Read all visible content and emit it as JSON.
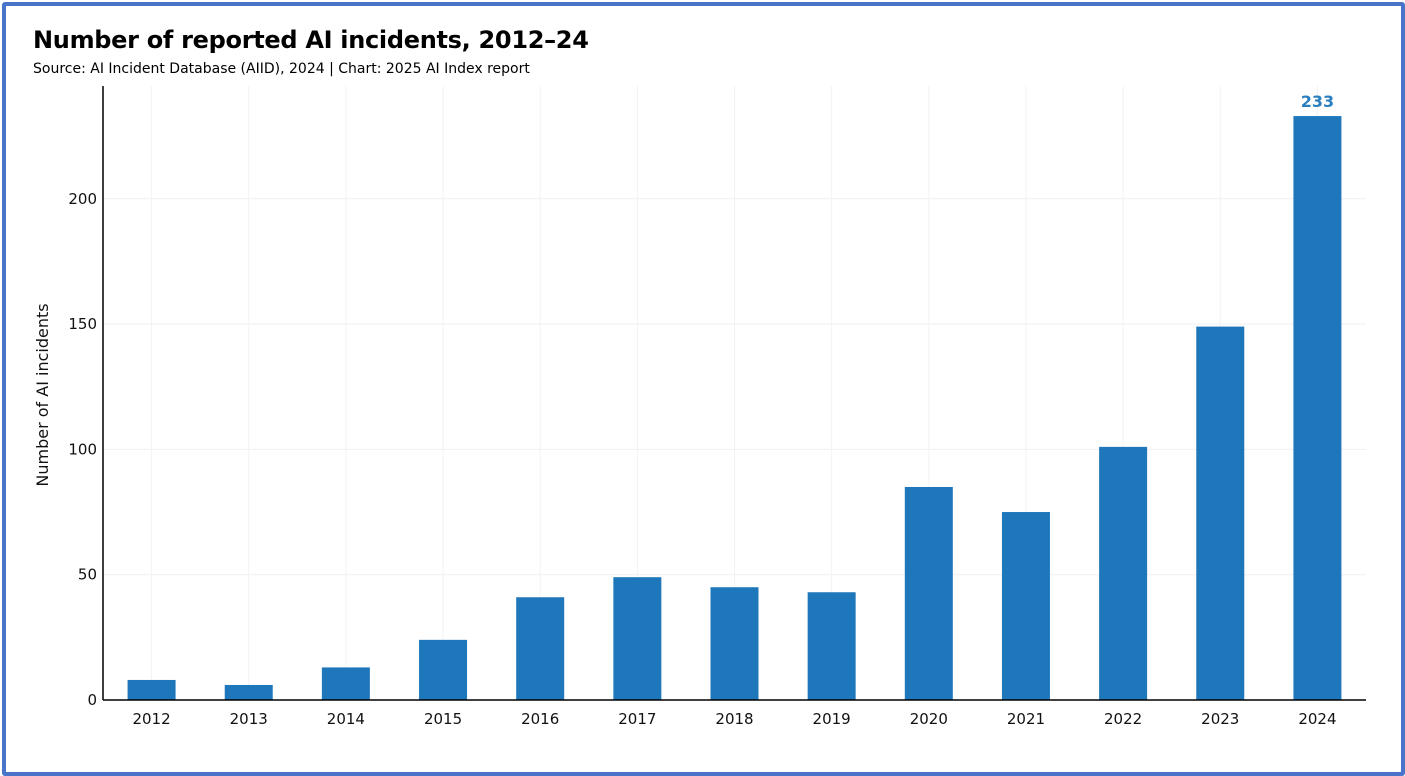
{
  "header": {
    "title": "Number of reported AI incidents, 2012–24",
    "subtitle": "Source: AI Incident Database (AIID), 2024 | Chart: 2025 AI Index report"
  },
  "chart_data": {
    "type": "bar",
    "title": "Number of reported AI incidents, 2012–24",
    "subtitle": "Source: AI Incident Database (AIID), 2024 | Chart: 2025 AI Index report",
    "xlabel": "",
    "ylabel": "Number of AI incidents",
    "categories": [
      "2012",
      "2013",
      "2014",
      "2015",
      "2016",
      "2017",
      "2018",
      "2019",
      "2020",
      "2021",
      "2022",
      "2023",
      "2024"
    ],
    "values": [
      8,
      6,
      13,
      24,
      41,
      49,
      45,
      43,
      85,
      75,
      101,
      149,
      233
    ],
    "ylim": [
      0,
      245
    ],
    "yticks": [
      0,
      50,
      100,
      150,
      200
    ],
    "grid": true,
    "legend": "none",
    "data_labels": [
      {
        "category": "2024",
        "text": "233"
      }
    ],
    "colors": {
      "bar": "#1f77bb",
      "data_label": "#2a7fc0",
      "frame": "#4a74c9"
    }
  }
}
